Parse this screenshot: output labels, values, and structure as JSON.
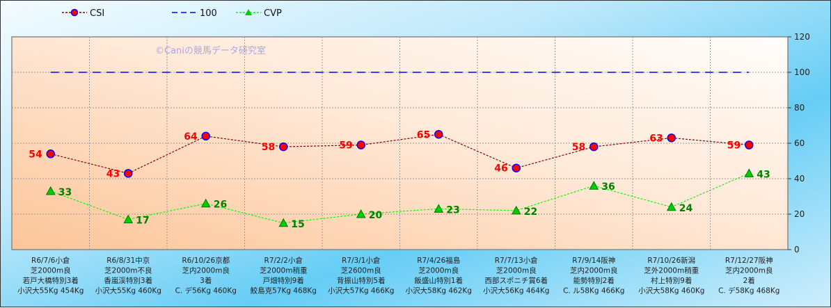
{
  "chart_data": {
    "type": "line",
    "watermark": "©Caniの競馬データ研究室",
    "categories": [
      [
        "R6/7/6小倉",
        "芝2000m良",
        "若戸大橋特別3着",
        "小沢大55Kg 454Kg"
      ],
      [
        "R6/8/31中京",
        "芝2000m不良",
        "香嵐渓特別3着",
        "小沢大55Kg 460Kg"
      ],
      [
        "R6/10/26京都",
        "芝内2000m良",
        "3着",
        "C. デ56Kg 460Kg"
      ],
      [
        "R7/2/2小倉",
        "芝2000m稍重",
        "戸畑特別9着",
        "鮫島克57Kg 468Kg"
      ],
      [
        "R7/3/1小倉",
        "芝2600m良",
        "背振山特別5着",
        "小沢大57Kg 466Kg"
      ],
      [
        "R7/4/26福島",
        "芝2000m良",
        "飯盛山特別1着",
        "小沢大58Kg 462Kg"
      ],
      [
        "R7/7/13小倉",
        "芝2000m良",
        "西部スポニチ賞6着",
        "小沢大56Kg 464Kg"
      ],
      [
        "R7/9/14阪神",
        "芝内2000m良",
        "能勢特別2着",
        "C. ル58Kg 466Kg"
      ],
      [
        "R7/10/26新潟",
        "芝外2000m稍重",
        "村上特別9着",
        "小沢大58Kg 460Kg"
      ],
      [
        "R7/12/27阪神",
        "芝内2000m良",
        "2着",
        "C. デ58Kg 468Kg"
      ]
    ],
    "series": [
      {
        "name": "CSI",
        "values": [
          54,
          43,
          64,
          58,
          59,
          65,
          46,
          58,
          63,
          59
        ],
        "color": "#8b0000",
        "marker": "circle",
        "marker_fill": "#ff0000",
        "marker_edge": "#0000ff",
        "label_color": "#ff0000"
      },
      {
        "name": "100",
        "values": [
          100,
          100,
          100,
          100,
          100,
          100,
          100,
          100,
          100,
          100
        ],
        "color": "#0000ff",
        "marker": "none"
      },
      {
        "name": "CVP",
        "values": [
          33,
          17,
          26,
          15,
          20,
          23,
          22,
          36,
          24,
          43
        ],
        "color": "#00ff00",
        "marker": "triangle",
        "marker_fill": "#00cc00",
        "label_color": "#008000"
      }
    ],
    "ylim": [
      0,
      120
    ],
    "yticks": [
      0,
      20,
      40,
      60,
      80,
      100,
      120
    ],
    "y_axis_side": "right",
    "grid": true,
    "legend": "top-left"
  }
}
